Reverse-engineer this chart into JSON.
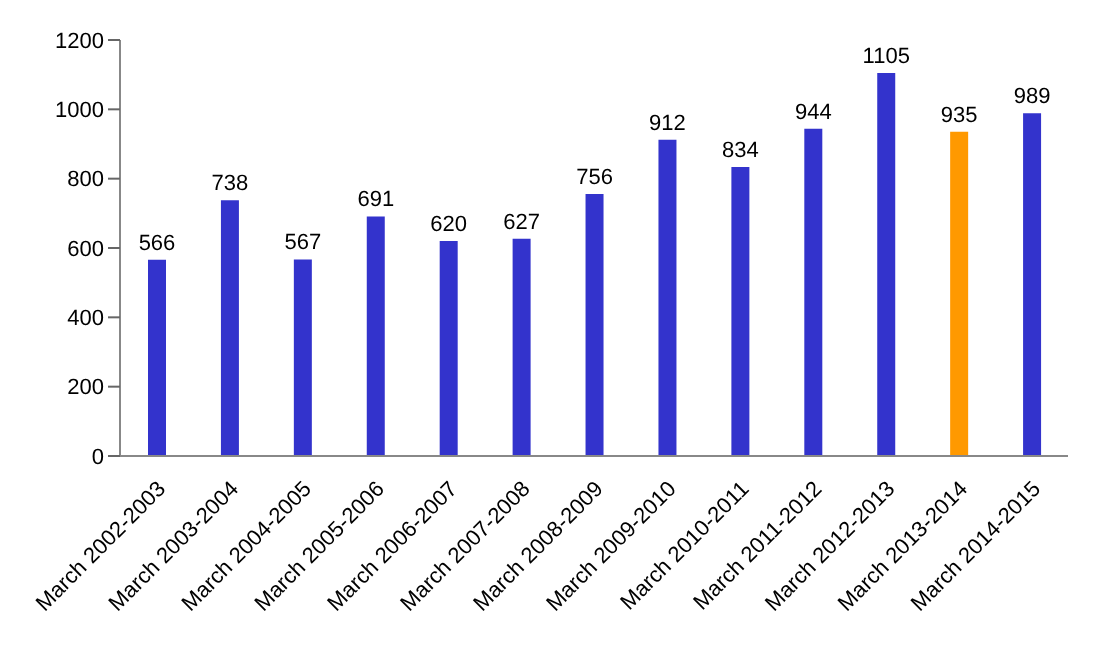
{
  "chart_data": {
    "type": "bar",
    "categories": [
      "March 2002-2003",
      "March 2003-2004",
      "March 2004-2005",
      "March 2005-2006",
      "March 2006-2007",
      "March 2007-2008",
      "March 2008-2009",
      "March 2009-2010",
      "March 2010-2011",
      "March 2011-2012",
      "March 2012-2013",
      "March 2013-2014",
      "March 2014-2015"
    ],
    "values": [
      566,
      738,
      567,
      691,
      620,
      627,
      756,
      912,
      834,
      944,
      1105,
      935,
      989
    ],
    "colors": [
      "#3333cc",
      "#3333cc",
      "#3333cc",
      "#3333cc",
      "#3333cc",
      "#3333cc",
      "#3333cc",
      "#3333cc",
      "#3333cc",
      "#3333cc",
      "#3333cc",
      "#ff9900",
      "#3333cc"
    ],
    "ylim": [
      0,
      1200
    ],
    "yticks": [
      0,
      200,
      400,
      600,
      800,
      1000,
      1200
    ],
    "grid": false,
    "data_labels": true
  }
}
